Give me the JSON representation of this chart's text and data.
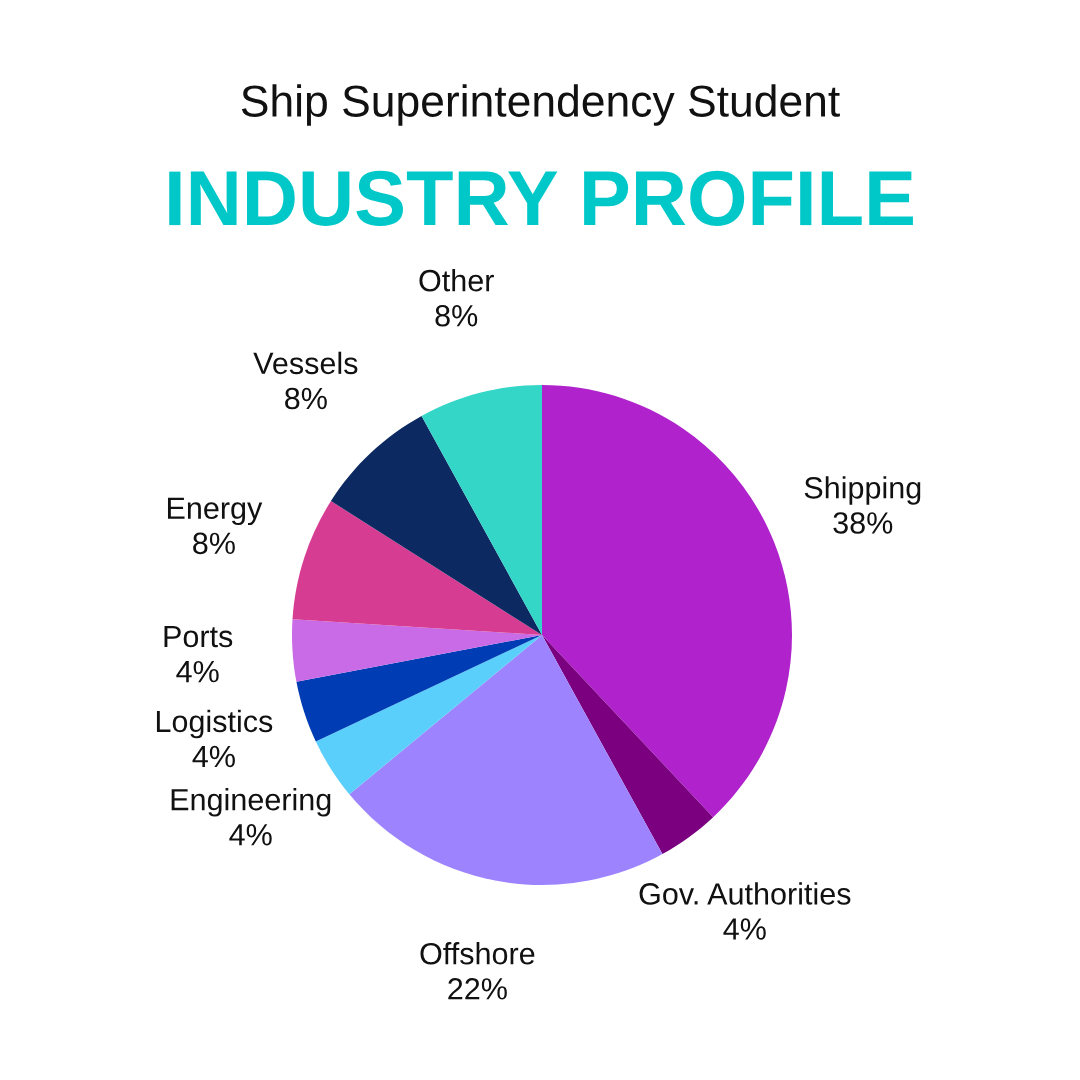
{
  "chart_data": {
    "type": "pie",
    "title": "Ship Superintendency Student",
    "subtitle": "INDUSTRY PROFILE",
    "categories": [
      "Shipping",
      "Gov. Authorities",
      "Offshore",
      "Engineering",
      "Logistics",
      "Ports",
      "Energy",
      "Vessels",
      "Other"
    ],
    "values": [
      38,
      4,
      22,
      4,
      4,
      4,
      8,
      8,
      8
    ],
    "value_labels": [
      "38%",
      "4%",
      "22%",
      "4%",
      "4%",
      "4%",
      "8%",
      "8%",
      "8%"
    ],
    "colors": [
      "#b023cc",
      "#7a0080",
      "#9d84fe",
      "#5bcffb",
      "#003cb3",
      "#c96ae6",
      "#d63d92",
      "#0c2961",
      "#34d6c8"
    ],
    "legend": false
  }
}
